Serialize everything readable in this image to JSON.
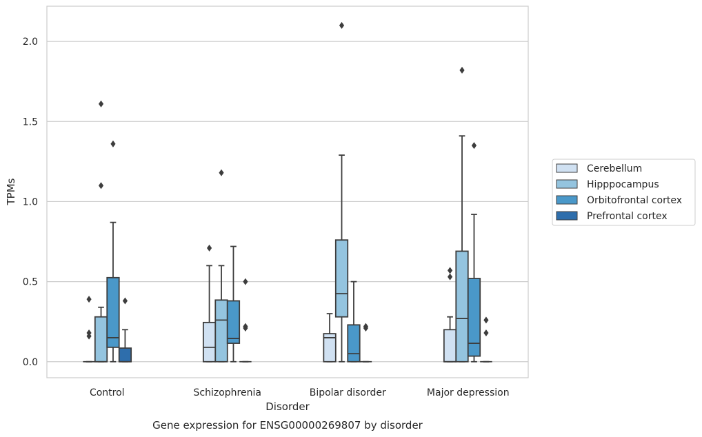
{
  "chart_data": {
    "type": "boxplot",
    "caption": "Gene expression for ENSG00000269807 by disorder",
    "xlabel": "Disorder",
    "ylabel": "TPMs",
    "ylim": [
      -0.1,
      2.22
    ],
    "yticks": [
      "0.0",
      "0.5",
      "1.0",
      "1.5",
      "2.0"
    ],
    "grid": "horizontal",
    "legend_position": "right",
    "categories": [
      "Control",
      "Schizophrenia",
      "Bipolar disorder",
      "Major depression"
    ],
    "series": [
      {
        "name": "Cerebellum",
        "color": "#d0e1f2",
        "boxes": [
          {
            "whislo": 0,
            "q1": 0,
            "med": 0,
            "q3": 0,
            "whishi": 0,
            "fliers": [
              0.39,
              0.18,
              0.16
            ]
          },
          {
            "whislo": 0,
            "q1": 0,
            "med": 0.09,
            "q3": 0.245,
            "whishi": 0.6,
            "fliers": [
              0.71
            ]
          },
          {
            "whislo": 0,
            "q1": 0,
            "med": 0.15,
            "q3": 0.175,
            "whishi": 0.3,
            "fliers": []
          },
          {
            "whislo": 0,
            "q1": 0,
            "med": 0,
            "q3": 0.2,
            "whishi": 0.28,
            "fliers": [
              0.57,
              0.53
            ]
          }
        ]
      },
      {
        "name": "Hipppocampus",
        "color": "#94c4df",
        "boxes": [
          {
            "whislo": 0,
            "q1": 0,
            "med": 0,
            "q3": 0.28,
            "whishi": 0.34,
            "fliers": [
              1.61,
              1.1
            ]
          },
          {
            "whislo": 0,
            "q1": 0,
            "med": 0.26,
            "q3": 0.385,
            "whishi": 0.6,
            "fliers": [
              1.18
            ]
          },
          {
            "whislo": 0,
            "q1": 0.28,
            "med": 0.425,
            "q3": 0.76,
            "whishi": 1.29,
            "fliers": [
              2.1
            ]
          },
          {
            "whislo": 0,
            "q1": 0,
            "med": 0.27,
            "q3": 0.69,
            "whishi": 1.41,
            "fliers": [
              1.82
            ]
          }
        ]
      },
      {
        "name": "Orbitofrontal cortex",
        "color": "#4a98c9",
        "boxes": [
          {
            "whislo": 0,
            "q1": 0.09,
            "med": 0.15,
            "q3": 0.525,
            "whishi": 0.87,
            "fliers": [
              1.36
            ]
          },
          {
            "whislo": 0,
            "q1": 0.115,
            "med": 0.145,
            "q3": 0.38,
            "whishi": 0.72,
            "fliers": []
          },
          {
            "whislo": 0,
            "q1": 0,
            "med": 0.05,
            "q3": 0.23,
            "whishi": 0.5,
            "fliers": []
          },
          {
            "whislo": 0,
            "q1": 0.035,
            "med": 0.115,
            "q3": 0.52,
            "whishi": 0.92,
            "fliers": [
              1.35
            ]
          }
        ]
      },
      {
        "name": "Prefrontal cortex",
        "color": "#2e6eac",
        "boxes": [
          {
            "whislo": 0,
            "q1": 0,
            "med": 0,
            "q3": 0.085,
            "whishi": 0.2,
            "fliers": [
              0.38
            ]
          },
          {
            "whislo": 0,
            "q1": 0,
            "med": 0,
            "q3": 0,
            "whishi": 0,
            "fliers": [
              0.5,
              0.22,
              0.21
            ]
          },
          {
            "whislo": 0,
            "q1": 0,
            "med": 0,
            "q3": 0,
            "whishi": 0,
            "fliers": [
              0.22,
              0.21
            ]
          },
          {
            "whislo": 0,
            "q1": 0,
            "med": 0,
            "q3": 0,
            "whishi": 0,
            "fliers": [
              0.26,
              0.18
            ]
          }
        ]
      }
    ],
    "colors": {
      "grid": "#cccccc",
      "frame": "#cccccc",
      "line": "#3d3d3d",
      "text": "#262626"
    }
  }
}
